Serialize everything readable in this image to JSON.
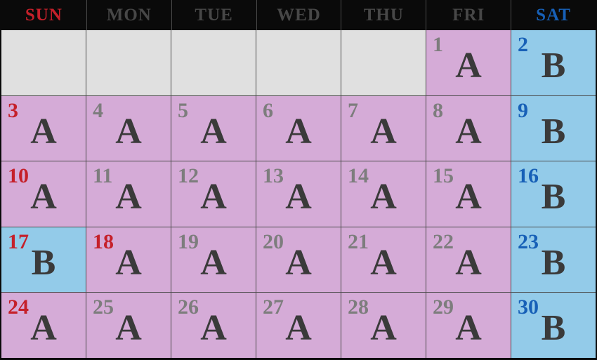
{
  "calendar": {
    "weekday_header": [
      {
        "label": "SUN",
        "style": "sunday"
      },
      {
        "label": "MON",
        "style": "weekday"
      },
      {
        "label": "TUE",
        "style": "weekday"
      },
      {
        "label": "WED",
        "style": "weekday"
      },
      {
        "label": "THU",
        "style": "weekday"
      },
      {
        "label": "FRI",
        "style": "weekday"
      },
      {
        "label": "SAT",
        "style": "saturday"
      }
    ],
    "weeks": [
      {
        "cells": [
          {
            "day": "",
            "letter": "",
            "type": "empty",
            "day_color": ""
          },
          {
            "day": "",
            "letter": "",
            "type": "empty",
            "day_color": ""
          },
          {
            "day": "",
            "letter": "",
            "type": "empty",
            "day_color": ""
          },
          {
            "day": "",
            "letter": "",
            "type": "empty",
            "day_color": ""
          },
          {
            "day": "",
            "letter": "",
            "type": "empty",
            "day_color": ""
          },
          {
            "day": "1",
            "letter": "A",
            "type": "A",
            "day_color": "gray"
          },
          {
            "day": "2",
            "letter": "B",
            "type": "B",
            "day_color": "blue"
          }
        ]
      },
      {
        "cells": [
          {
            "day": "3",
            "letter": "A",
            "type": "A",
            "day_color": "red"
          },
          {
            "day": "4",
            "letter": "A",
            "type": "A",
            "day_color": "gray"
          },
          {
            "day": "5",
            "letter": "A",
            "type": "A",
            "day_color": "gray"
          },
          {
            "day": "6",
            "letter": "A",
            "type": "A",
            "day_color": "gray"
          },
          {
            "day": "7",
            "letter": "A",
            "type": "A",
            "day_color": "gray"
          },
          {
            "day": "8",
            "letter": "A",
            "type": "A",
            "day_color": "gray"
          },
          {
            "day": "9",
            "letter": "B",
            "type": "B",
            "day_color": "blue"
          }
        ]
      },
      {
        "cells": [
          {
            "day": "10",
            "letter": "A",
            "type": "A",
            "day_color": "red"
          },
          {
            "day": "11",
            "letter": "A",
            "type": "A",
            "day_color": "gray"
          },
          {
            "day": "12",
            "letter": "A",
            "type": "A",
            "day_color": "gray"
          },
          {
            "day": "13",
            "letter": "A",
            "type": "A",
            "day_color": "gray"
          },
          {
            "day": "14",
            "letter": "A",
            "type": "A",
            "day_color": "gray"
          },
          {
            "day": "15",
            "letter": "A",
            "type": "A",
            "day_color": "gray"
          },
          {
            "day": "16",
            "letter": "B",
            "type": "B",
            "day_color": "blue"
          }
        ]
      },
      {
        "cells": [
          {
            "day": "17",
            "letter": "B",
            "type": "B",
            "day_color": "red"
          },
          {
            "day": "18",
            "letter": "A",
            "type": "A",
            "day_color": "red"
          },
          {
            "day": "19",
            "letter": "A",
            "type": "A",
            "day_color": "gray"
          },
          {
            "day": "20",
            "letter": "A",
            "type": "A",
            "day_color": "gray"
          },
          {
            "day": "21",
            "letter": "A",
            "type": "A",
            "day_color": "gray"
          },
          {
            "day": "22",
            "letter": "A",
            "type": "A",
            "day_color": "gray"
          },
          {
            "day": "23",
            "letter": "B",
            "type": "B",
            "day_color": "blue"
          }
        ]
      },
      {
        "cells": [
          {
            "day": "24",
            "letter": "A",
            "type": "A",
            "day_color": "red"
          },
          {
            "day": "25",
            "letter": "A",
            "type": "A",
            "day_color": "gray"
          },
          {
            "day": "26",
            "letter": "A",
            "type": "A",
            "day_color": "gray"
          },
          {
            "day": "27",
            "letter": "A",
            "type": "A",
            "day_color": "gray"
          },
          {
            "day": "28",
            "letter": "A",
            "type": "A",
            "day_color": "gray"
          },
          {
            "day": "29",
            "letter": "A",
            "type": "A",
            "day_color": "gray"
          },
          {
            "day": "30",
            "letter": "B",
            "type": "B",
            "day_color": "blue"
          }
        ]
      }
    ],
    "colors": {
      "header_bg": "#0a0a0a",
      "sunday_text": "#c5202a",
      "weekday_text": "#474747",
      "saturday_text": "#1760b7",
      "empty_cell_bg": "#e0e0e0",
      "a_cell_bg": "#d5abd7",
      "b_cell_bg": "#93cbe9",
      "day_gray": "#7d7d7d",
      "day_red": "#c5202a",
      "day_blue": "#1760b7",
      "letter_text": "#3a3a3a",
      "grid_line": "#4a4a4a"
    }
  }
}
